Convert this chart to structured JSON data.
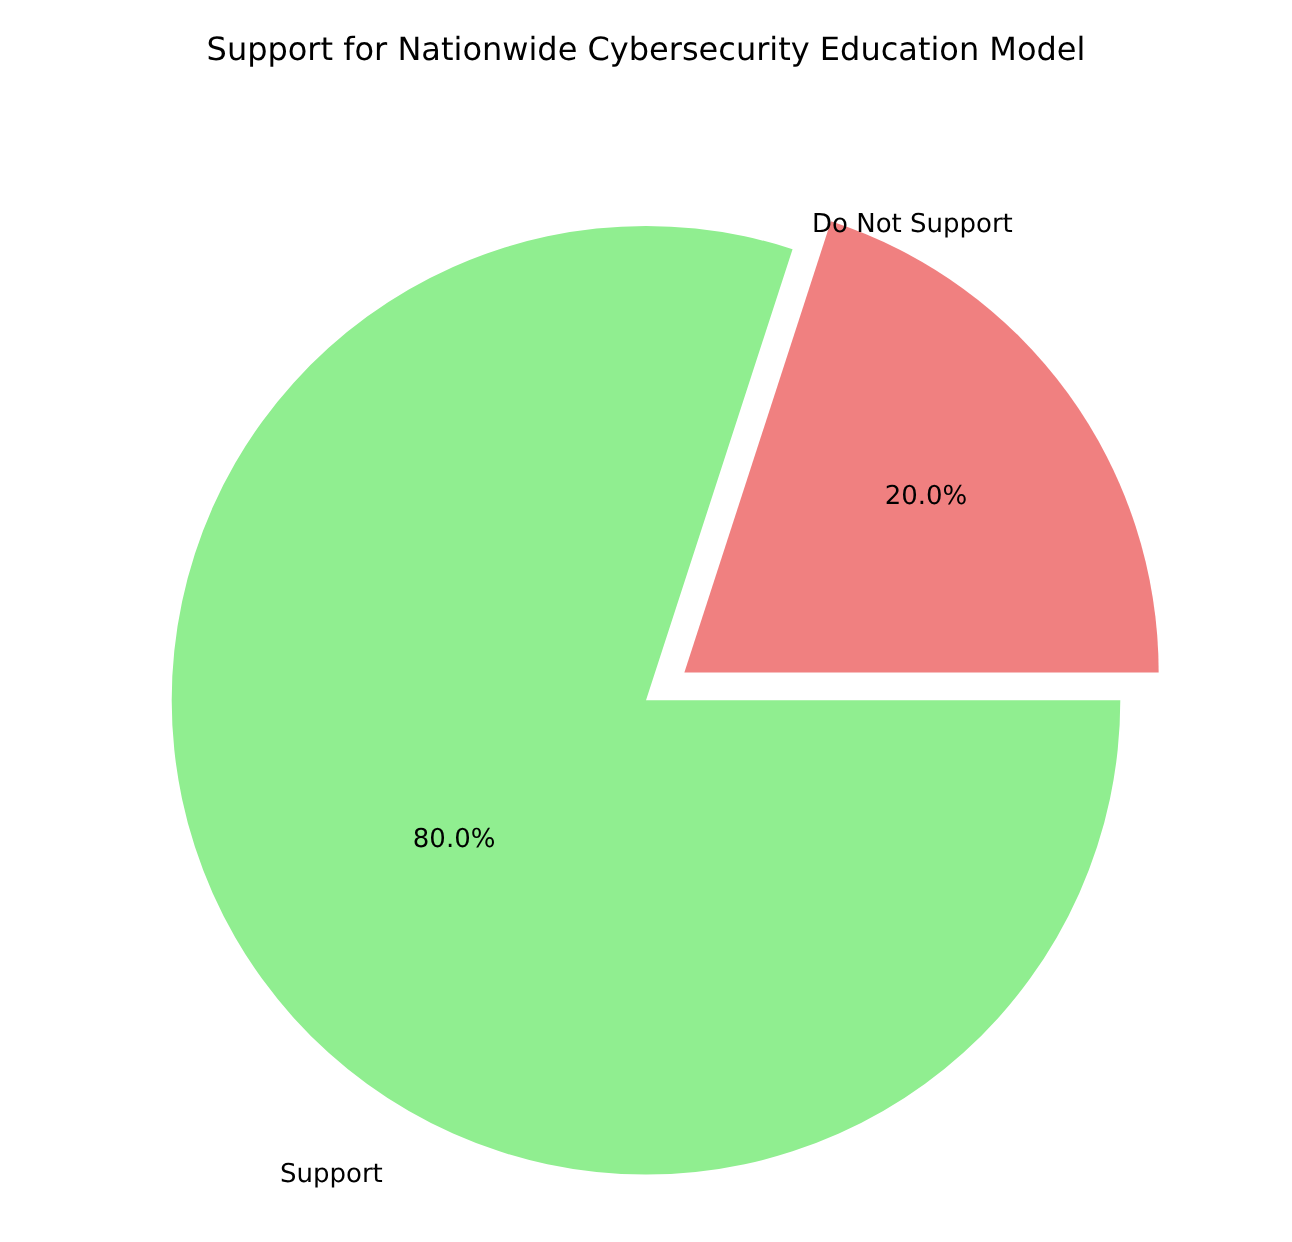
{
  "chart_data": {
    "type": "pie",
    "title": "Support for Nationwide Cybersecurity Education Model",
    "categories": [
      "Support",
      "Do Not Support"
    ],
    "values": [
      80,
      20
    ],
    "value_labels": [
      "80.0%",
      "20.0%"
    ],
    "colors": [
      "#90ee90",
      "#f08080"
    ],
    "legend": false
  }
}
